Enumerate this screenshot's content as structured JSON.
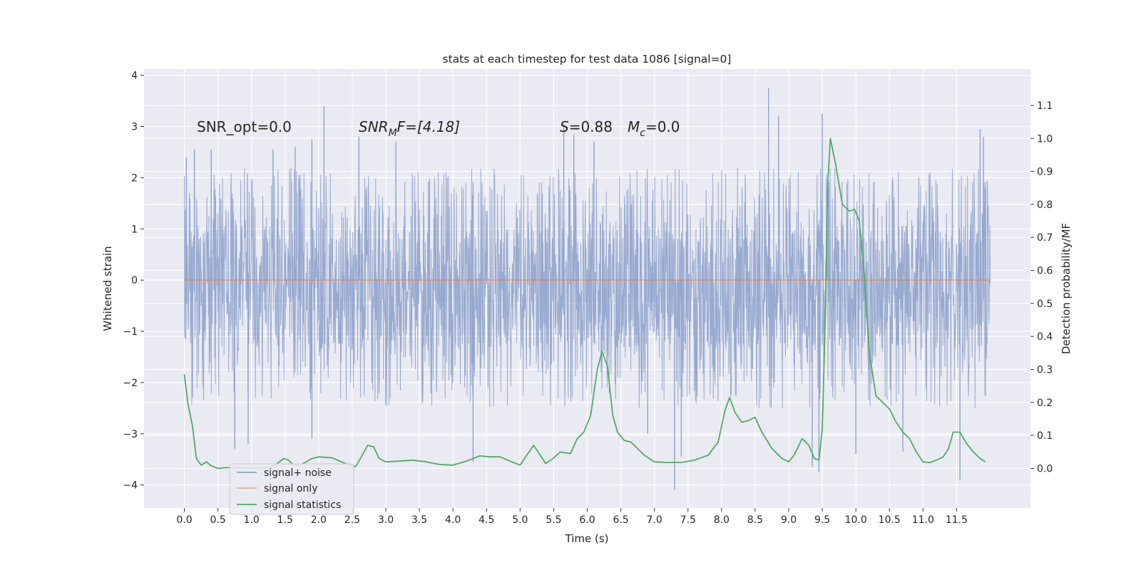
{
  "chart_data": {
    "type": "line",
    "title": "stats at each timestep for test data 1086 [signal=0]",
    "xlabel": "Time (s)",
    "ylabel": "Whitened strain",
    "y2label": "Detection probability/MF",
    "xlim": [
      -0.6,
      12.6
    ],
    "ylim": [
      -4.45,
      4.12
    ],
    "y2lim": [
      -0.12,
      1.21
    ],
    "x_ticks": [
      "0.0",
      "0.5",
      "1.0",
      "1.5",
      "2.0",
      "2.5",
      "3.0",
      "3.5",
      "4.0",
      "4.5",
      "5.0",
      "5.5",
      "6.0",
      "6.5",
      "7.0",
      "7.5",
      "8.0",
      "8.5",
      "9.0",
      "9.5",
      "10.0",
      "10.5",
      "11.0",
      "11.5"
    ],
    "y_ticks": [
      "4",
      "3",
      "2",
      "1",
      "0",
      "−1",
      "−2",
      "−3",
      "−4"
    ],
    "y2_ticks": [
      "1.1",
      "1.0",
      "0.9",
      "0.8",
      "0.7",
      "0.6",
      "0.5",
      "0.4",
      "0.3",
      "0.2",
      "0.1",
      "0.0"
    ],
    "grid": true,
    "legend_position": "lower-left",
    "annotations": {
      "snr_opt": "SNR_opt=0.0",
      "snr_mf_main": "SNR",
      "snr_mf_sub": "M",
      "snr_mf_rest": "F=[4.18]",
      "s_main": "S",
      "s_rest": "=0.88",
      "mc_main": "M",
      "mc_sub": "c",
      "mc_rest": "=0.0"
    },
    "noise_envelope": {
      "x_range": [
        0.0,
        12.0
      ],
      "core_band": [
        -1.35,
        1.1
      ],
      "typical_spike_max": 2.2,
      "typical_spike_min": -2.5,
      "notable_spikes": [
        {
          "x": 0.03,
          "y": 2.4
        },
        {
          "x": 0.15,
          "y": 2.55
        },
        {
          "x": 0.4,
          "y": 2.55
        },
        {
          "x": 1.32,
          "y": 2.55
        },
        {
          "x": 1.65,
          "y": 2.6
        },
        {
          "x": 2.08,
          "y": 3.4
        },
        {
          "x": 1.9,
          "y": 2.75
        },
        {
          "x": 2.6,
          "y": 2.8
        },
        {
          "x": 3.15,
          "y": 2.7
        },
        {
          "x": 5.65,
          "y": 3.05
        },
        {
          "x": 5.8,
          "y": 2.85
        },
        {
          "x": 6.1,
          "y": 2.7
        },
        {
          "x": 8.7,
          "y": 3.75
        },
        {
          "x": 8.85,
          "y": 3.2
        },
        {
          "x": 9.5,
          "y": 3.25
        },
        {
          "x": 11.85,
          "y": 2.95
        },
        {
          "x": 11.9,
          "y": 2.8
        },
        {
          "x": 0.75,
          "y": -3.3
        },
        {
          "x": 0.95,
          "y": -3.2
        },
        {
          "x": 1.9,
          "y": -3.1
        },
        {
          "x": 4.3,
          "y": -3.55
        },
        {
          "x": 6.9,
          "y": -3.0
        },
        {
          "x": 7.3,
          "y": -4.1
        },
        {
          "x": 7.4,
          "y": -3.45
        },
        {
          "x": 9.35,
          "y": -3.65
        },
        {
          "x": 9.45,
          "y": -3.75
        },
        {
          "x": 10.0,
          "y": -3.4
        },
        {
          "x": 10.7,
          "y": -3.35
        },
        {
          "x": 11.55,
          "y": -3.9
        }
      ]
    },
    "series": [
      {
        "name": "signal+ noise",
        "color": "#8fa3cc"
      },
      {
        "name": "signal only",
        "color": "#dd8452",
        "x": [
          0.0,
          12.0
        ],
        "y": [
          0.0,
          0.0
        ]
      },
      {
        "name": "signal statistics",
        "color": "#55a868",
        "axis": "right",
        "x": [
          0.0,
          0.05,
          0.12,
          0.18,
          0.25,
          0.33,
          0.4,
          0.5,
          0.6,
          0.8,
          1.0,
          1.2,
          1.35,
          1.48,
          1.55,
          1.62,
          1.7,
          1.8,
          1.9,
          2.0,
          2.2,
          2.4,
          2.55,
          2.65,
          2.73,
          2.82,
          2.9,
          3.0,
          3.2,
          3.4,
          3.6,
          3.8,
          4.0,
          4.2,
          4.4,
          4.55,
          4.7,
          4.85,
          5.0,
          5.1,
          5.2,
          5.3,
          5.38,
          5.48,
          5.6,
          5.75,
          5.85,
          5.95,
          6.05,
          6.15,
          6.22,
          6.3,
          6.38,
          6.45,
          6.55,
          6.65,
          6.75,
          6.85,
          7.0,
          7.2,
          7.4,
          7.6,
          7.8,
          7.95,
          8.05,
          8.12,
          8.2,
          8.3,
          8.4,
          8.5,
          8.6,
          8.75,
          8.9,
          9.0,
          9.08,
          9.2,
          9.3,
          9.38,
          9.45,
          9.5,
          9.55,
          9.58,
          9.62,
          9.7,
          9.8,
          9.9,
          9.98,
          10.05,
          10.12,
          10.2,
          10.3,
          10.4,
          10.5,
          10.6,
          10.7,
          10.8,
          10.9,
          11.0,
          11.1,
          11.2,
          11.3,
          11.38,
          11.45,
          11.55,
          11.65,
          11.75,
          11.85,
          11.93
        ],
        "y": [
          0.285,
          0.2,
          0.13,
          0.03,
          0.01,
          0.02,
          0.008,
          0.0,
          0.002,
          0.002,
          0.001,
          0.002,
          0.01,
          0.03,
          0.025,
          0.012,
          0.008,
          0.018,
          0.03,
          0.035,
          0.032,
          0.015,
          0.005,
          0.04,
          0.07,
          0.065,
          0.03,
          0.02,
          0.022,
          0.025,
          0.02,
          0.012,
          0.01,
          0.022,
          0.038,
          0.035,
          0.035,
          0.022,
          0.01,
          0.04,
          0.07,
          0.04,
          0.015,
          0.028,
          0.05,
          0.045,
          0.09,
          0.11,
          0.16,
          0.3,
          0.355,
          0.31,
          0.16,
          0.11,
          0.085,
          0.08,
          0.06,
          0.04,
          0.02,
          0.018,
          0.018,
          0.025,
          0.04,
          0.08,
          0.175,
          0.215,
          0.17,
          0.14,
          0.145,
          0.155,
          0.11,
          0.06,
          0.03,
          0.02,
          0.04,
          0.09,
          0.07,
          0.03,
          0.025,
          0.12,
          0.5,
          0.86,
          1.0,
          0.92,
          0.8,
          0.78,
          0.785,
          0.75,
          0.6,
          0.35,
          0.22,
          0.2,
          0.18,
          0.14,
          0.11,
          0.09,
          0.05,
          0.02,
          0.018,
          0.025,
          0.035,
          0.06,
          0.11,
          0.11,
          0.075,
          0.05,
          0.03,
          0.02
        ]
      }
    ]
  },
  "legend": {
    "items": [
      {
        "label": "signal+ noise",
        "color": "#8fa3cc"
      },
      {
        "label": "signal only",
        "color": "#dd8452"
      },
      {
        "label": "signal statistics",
        "color": "#55a868"
      }
    ]
  }
}
